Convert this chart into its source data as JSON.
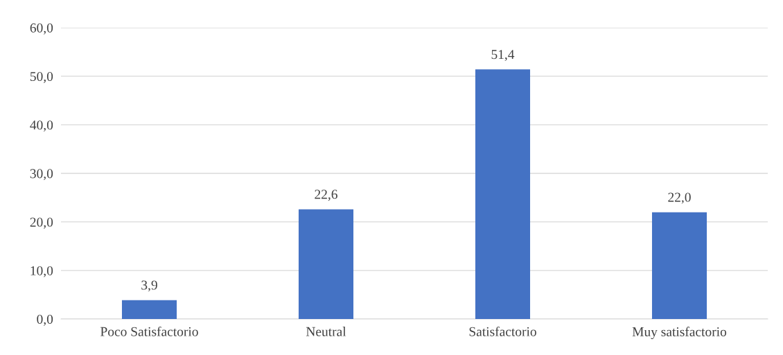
{
  "chart_data": {
    "type": "bar",
    "categories": [
      "Poco Satisfactorio",
      "Neutral",
      "Satisfactorio",
      "Muy satisfactorio"
    ],
    "values": [
      3.9,
      22.6,
      51.4,
      22.0
    ],
    "color": "#4472c4",
    "value_labels": [
      "3,9",
      "22,6",
      "51,4",
      "22,0"
    ],
    "ylim": [
      0,
      60
    ],
    "yticks": [
      {
        "value": 0,
        "label": "0,0"
      },
      {
        "value": 10,
        "label": "10,0"
      },
      {
        "value": 20,
        "label": "20,0"
      },
      {
        "value": 30,
        "label": "30,0"
      },
      {
        "value": 40,
        "label": "40,0"
      },
      {
        "value": 50,
        "label": "50,0"
      },
      {
        "value": 60,
        "label": "60,0"
      }
    ],
    "grid": "y",
    "legend": false
  }
}
